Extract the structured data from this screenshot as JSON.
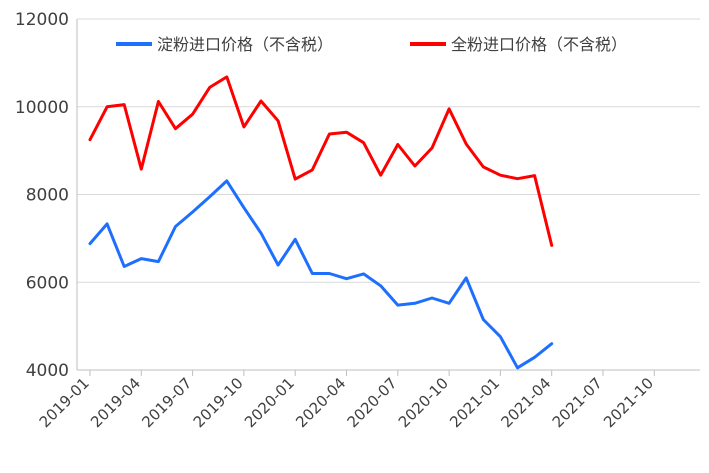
{
  "chart_data": {
    "type": "line",
    "title": "",
    "xlabel": "",
    "ylabel": "",
    "ylim": [
      4000,
      12000
    ],
    "yticks": [
      "4000",
      "6000",
      "8000",
      "10000",
      "12000"
    ],
    "xticks": [
      "2019-01",
      "2019-04",
      "2019-07",
      "2019-10",
      "2020-01",
      "2020-04",
      "2020-07",
      "2020-10",
      "2021-01",
      "2021-04",
      "2021-07",
      "2021-10"
    ],
    "legend_position": "top",
    "grid": "horizontal",
    "x": [
      "2019-01",
      "2019-02",
      "2019-03",
      "2019-04",
      "2019-05",
      "2019-06",
      "2019-07",
      "2019-08",
      "2019-09",
      "2019-10",
      "2019-11",
      "2019-12",
      "2020-01",
      "2020-02",
      "2020-03",
      "2020-04",
      "2020-05",
      "2020-06",
      "2020-07",
      "2020-08",
      "2020-09",
      "2020-10",
      "2020-11",
      "2020-12",
      "2021-01",
      "2021-02",
      "2021-03",
      "2021-04"
    ],
    "series": [
      {
        "name": "淀粉进口价格（不含税）",
        "color": "#1f6fff",
        "values": [
          6880,
          7330,
          6360,
          6540,
          6470,
          7270,
          7600,
          7950,
          8310,
          7700,
          7120,
          6390,
          6980,
          6200,
          6200,
          6080,
          6190,
          5920,
          5480,
          5520,
          5640,
          5520,
          6100,
          5150,
          4760,
          4050,
          4290,
          4600
        ]
      },
      {
        "name": "全粉进口价格（不含税）",
        "color": "#ff0000",
        "values": [
          9250,
          10000,
          10050,
          8580,
          10120,
          9500,
          9830,
          10440,
          10680,
          9540,
          10130,
          9680,
          8350,
          8560,
          9380,
          9420,
          9180,
          8440,
          9140,
          8650,
          9060,
          9950,
          9150,
          8630,
          8440,
          8360,
          8430,
          6840
        ]
      }
    ]
  }
}
